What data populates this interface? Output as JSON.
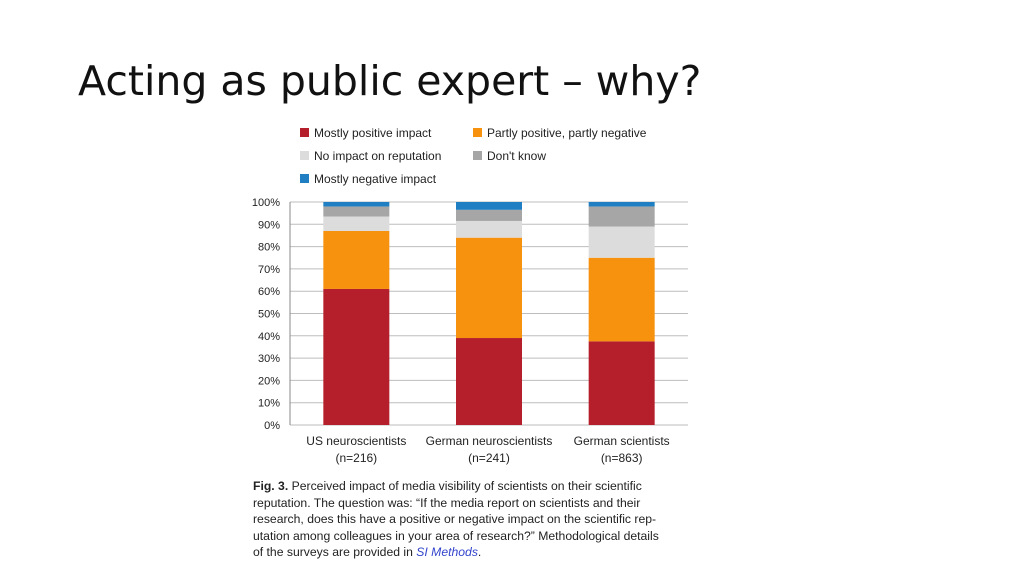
{
  "slide": {
    "title": "Acting as public expert – why?"
  },
  "chart_data": {
    "type": "bar",
    "stacked": true,
    "categories": [
      "US neuroscientists",
      "German neuroscientists",
      "German scientists"
    ],
    "category_sublabels": [
      "(n=216)",
      "(n=241)",
      "(n=863)"
    ],
    "y_ticks": [
      "0%",
      "10%",
      "20%",
      "30%",
      "40%",
      "50%",
      "60%",
      "70%",
      "80%",
      "90%",
      "100%"
    ],
    "ylim": [
      0,
      100
    ],
    "grid": true,
    "legend_position": "top",
    "series": [
      {
        "name": "Mostly positive impact",
        "color": "#b51f2b",
        "values": [
          61,
          39,
          37.5
        ]
      },
      {
        "name": "Partly positive, partly negative",
        "color": "#f7920f",
        "values": [
          26,
          45,
          37.5
        ]
      },
      {
        "name": "No impact on reputation",
        "color": "#dcdcdc",
        "values": [
          6.5,
          7.5,
          14
        ]
      },
      {
        "name": "Don't know",
        "color": "#a6a6a6",
        "values": [
          4.5,
          5,
          9
        ]
      },
      {
        "name": "Mostly negative impact",
        "color": "#1f7fc2",
        "values": [
          2,
          3.5,
          2
        ]
      }
    ]
  },
  "caption": {
    "fig_label": "Fig. 3.",
    "line1": "Perceived impact of media visibility of scientists on their scientific",
    "line2": "reputation. The question was: “If the media report on scientists and their",
    "line3": "research, does this have a positive or negative impact on the scientific rep-",
    "line4": "utation among colleagues in your area of research?” Methodological details",
    "line5_prefix": "of the surveys are provided in ",
    "line5_link": "SI Methods",
    "line5_suffix": "."
  }
}
